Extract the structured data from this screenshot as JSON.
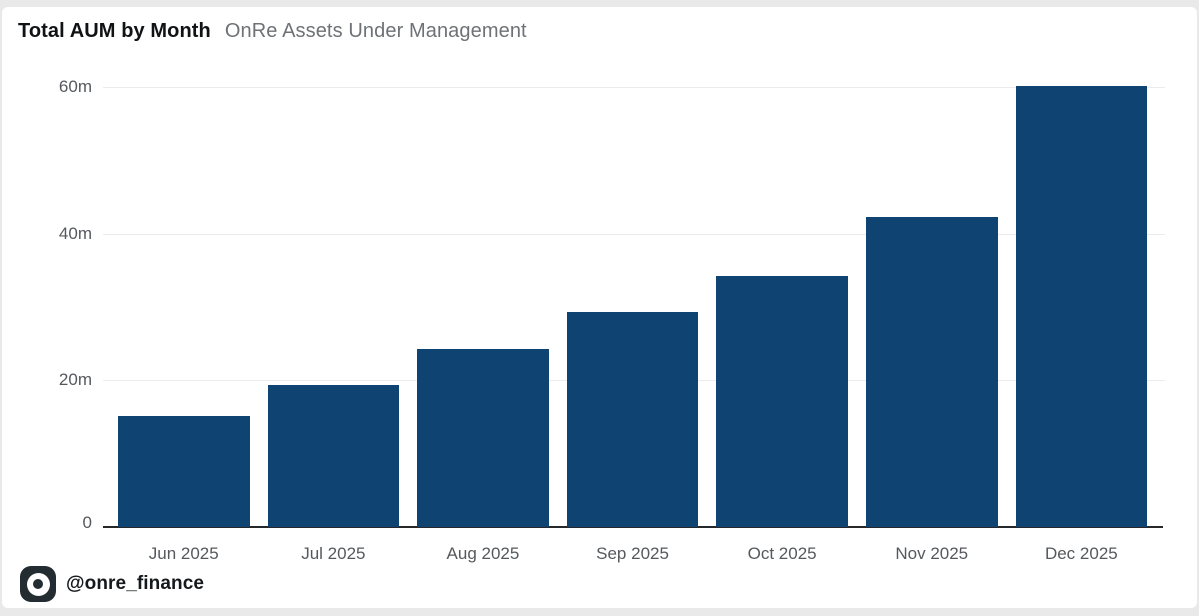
{
  "header": {
    "title": "Total AUM by Month",
    "subtitle": "OnRe Assets Under Management"
  },
  "footer": {
    "handle": "@onre_finance",
    "logo_icon": "onre-ring-icon"
  },
  "colors": {
    "bar": "#0e4372",
    "page_background": "#e9e9e9",
    "card_background": "#ffffff",
    "gridline": "#ececec",
    "axis_line": "#26282a",
    "axis_label": "#55595d",
    "title_text": "#101214",
    "subtitle_text": "#6e7276",
    "logo_background": "#232d31"
  },
  "chart_data": {
    "type": "bar",
    "title": "Total AUM by Month",
    "subtitle": "OnRe Assets Under Management",
    "categories": [
      "Jun 2025",
      "Jul 2025",
      "Aug 2025",
      "Sep 2025",
      "Oct 2025",
      "Nov 2025",
      "Dec 2025"
    ],
    "values": [
      15.1,
      19.4,
      24.3,
      29.3,
      34.2,
      42.3,
      60.2
    ],
    "unit": "m",
    "xlabel": "",
    "ylabel": "",
    "ylim": [
      0,
      60
    ],
    "yticks": [
      {
        "label": "0",
        "value": 0
      },
      {
        "label": "20m",
        "value": 20
      },
      {
        "label": "40m",
        "value": 40
      },
      {
        "label": "60m",
        "value": 60
      }
    ],
    "grid": "horizontal",
    "legend": "none",
    "bar_color": "#0e4372"
  }
}
